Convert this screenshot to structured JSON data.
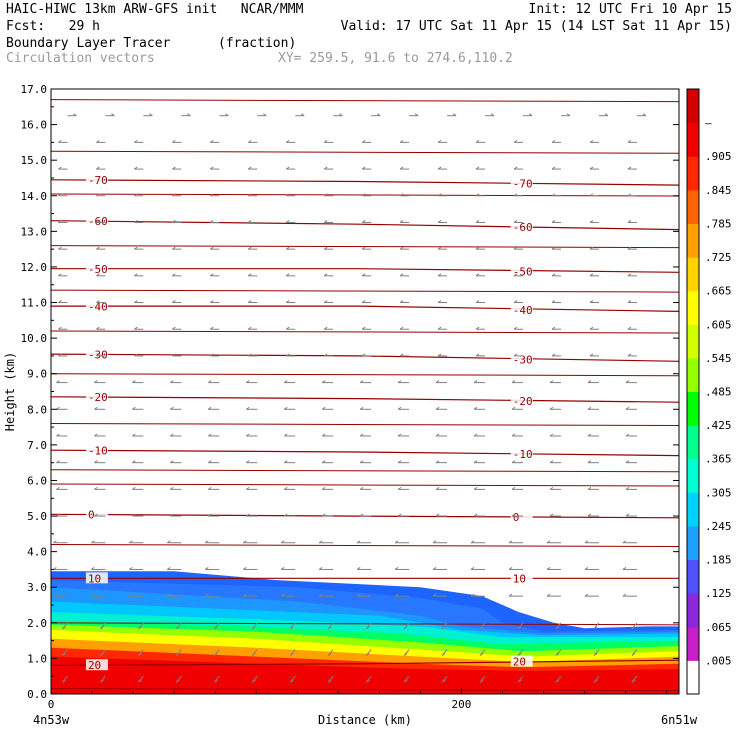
{
  "header": {
    "line1_left": "HAIC-HIWC 13km ARW-GFS init   NCAR/MMM",
    "line1_right": "Init: 12 UTC Fri 10 Apr 15",
    "line2_left": "Fcst:   29 h",
    "line2_right": "Valid: 17 UTC Sat 11 Apr 15 (14 LST Sat 11 Apr 15)",
    "line3_left": "Boundary Layer Tracer",
    "line3_units": "(fraction)",
    "line4_left": "Circulation vectors",
    "line4_xy": "XY= 259.5, 91.6 to 274.6,110.2"
  },
  "chart_data": {
    "type": "heatmap",
    "title": "Boundary Layer Tracer",
    "units": "(fraction)",
    "xlabel": "Distance (km)",
    "ylabel": "Height (km)",
    "xlim": [
      0,
      306
    ],
    "ylim": [
      0,
      17
    ],
    "x_ticks": [
      0,
      200
    ],
    "x_end_labels": [
      "4n53w",
      "6n51w"
    ],
    "y_ticks": [
      "0.0",
      "1.0",
      "2.0",
      "3.0",
      "4.0",
      "5.0",
      "6.0",
      "7.0",
      "8.0",
      "9.0",
      "10.0",
      "11.0",
      "12.0",
      "13.0",
      "14.0",
      "15.0",
      "16.0",
      "17.0"
    ],
    "colorbar": {
      "labels": [
        ".005",
        ".065",
        ".125",
        ".185",
        ".245",
        ".305",
        ".365",
        ".425",
        ".485",
        ".545",
        ".605",
        ".665",
        ".725",
        ".785",
        ".845",
        ".905",
        "–"
      ],
      "colors": [
        "#ffffff",
        "#c81ec8",
        "#8c28dc",
        "#5050ff",
        "#1ea0ff",
        "#00d2ff",
        "#00ffd2",
        "#00ff8c",
        "#00ff00",
        "#96ff00",
        "#d2ff00",
        "#ffff00",
        "#ffd200",
        "#ffa000",
        "#ff6400",
        "#ff2800",
        "#f00000",
        "#d20000"
      ]
    },
    "tracer_layers": [
      {
        "level": 0.005,
        "color": "#1e64ff",
        "top": [
          [
            0,
            3.45
          ],
          [
            60,
            3.45
          ],
          [
            110,
            3.2
          ],
          [
            180,
            3.0
          ],
          [
            210,
            2.75
          ],
          [
            228,
            2.3
          ],
          [
            245,
            2.0
          ],
          [
            260,
            1.85
          ],
          [
            290,
            1.9
          ],
          [
            306,
            1.9
          ]
        ]
      },
      {
        "level": 0.065,
        "color": "#2878ff",
        "top": [
          [
            0,
            3.2
          ],
          [
            60,
            3.1
          ],
          [
            120,
            3.0
          ],
          [
            180,
            2.7
          ],
          [
            210,
            2.4
          ],
          [
            220,
            2.0
          ],
          [
            240,
            1.75
          ],
          [
            306,
            1.8
          ]
        ]
      },
      {
        "level": 0.125,
        "color": "#1e96ff",
        "top": [
          [
            0,
            3.0
          ],
          [
            60,
            2.8
          ],
          [
            120,
            2.6
          ],
          [
            180,
            2.2
          ],
          [
            200,
            1.9
          ],
          [
            240,
            1.7
          ],
          [
            306,
            1.75
          ]
        ]
      },
      {
        "level": 0.185,
        "color": "#00c8ff",
        "top": [
          [
            0,
            2.6
          ],
          [
            80,
            2.4
          ],
          [
            160,
            2.2
          ],
          [
            200,
            1.8
          ],
          [
            240,
            1.65
          ],
          [
            306,
            1.7
          ]
        ]
      },
      {
        "level": 0.305,
        "color": "#00f0d2",
        "top": [
          [
            0,
            2.3
          ],
          [
            100,
            2.1
          ],
          [
            180,
            1.9
          ],
          [
            220,
            1.6
          ],
          [
            306,
            1.6
          ]
        ]
      },
      {
        "level": 0.425,
        "color": "#00ff64",
        "top": [
          [
            0,
            2.05
          ],
          [
            100,
            1.9
          ],
          [
            170,
            1.7
          ],
          [
            220,
            1.4
          ],
          [
            306,
            1.5
          ]
        ]
      },
      {
        "level": 0.545,
        "color": "#96ff00",
        "top": [
          [
            0,
            1.95
          ],
          [
            100,
            1.75
          ],
          [
            180,
            1.45
          ],
          [
            230,
            1.2
          ],
          [
            306,
            1.35
          ]
        ]
      },
      {
        "level": 0.665,
        "color": "#ffff00",
        "top": [
          [
            0,
            1.8
          ],
          [
            100,
            1.55
          ],
          [
            180,
            1.25
          ],
          [
            230,
            1.05
          ],
          [
            306,
            1.2
          ]
        ]
      },
      {
        "level": 0.785,
        "color": "#ffa000",
        "top": [
          [
            0,
            1.55
          ],
          [
            100,
            1.3
          ],
          [
            180,
            1.05
          ],
          [
            230,
            0.9
          ],
          [
            306,
            1.05
          ]
        ]
      },
      {
        "level": 0.905,
        "color": "#ff2800",
        "top": [
          [
            0,
            1.3
          ],
          [
            100,
            1.05
          ],
          [
            180,
            0.85
          ],
          [
            230,
            0.75
          ],
          [
            306,
            0.85
          ]
        ]
      },
      {
        "level": 1.0,
        "color": "#f00000",
        "top": [
          [
            0,
            1.05
          ],
          [
            100,
            0.85
          ],
          [
            180,
            0.7
          ],
          [
            230,
            0.65
          ],
          [
            306,
            0.7
          ]
        ]
      }
    ],
    "temperature_contours": [
      {
        "label": "-70",
        "pts": [
          [
            0,
            14.45
          ],
          [
            150,
            14.4
          ],
          [
            306,
            14.3
          ]
        ]
      },
      {
        "label": "-60",
        "pts": [
          [
            0,
            13.3
          ],
          [
            150,
            13.2
          ],
          [
            306,
            13.05
          ]
        ]
      },
      {
        "label": "-50",
        "pts": [
          [
            0,
            11.95
          ],
          [
            150,
            11.95
          ],
          [
            306,
            11.85
          ]
        ]
      },
      {
        "label": "-40",
        "pts": [
          [
            0,
            10.9
          ],
          [
            150,
            10.9
          ],
          [
            306,
            10.75
          ]
        ]
      },
      {
        "label": "-30",
        "pts": [
          [
            0,
            9.55
          ],
          [
            150,
            9.5
          ],
          [
            306,
            9.35
          ]
        ]
      },
      {
        "label": "-20",
        "pts": [
          [
            0,
            8.35
          ],
          [
            150,
            8.3
          ],
          [
            306,
            8.2
          ]
        ]
      },
      {
        "label": "-10",
        "pts": [
          [
            0,
            6.85
          ],
          [
            150,
            6.8
          ],
          [
            306,
            6.7
          ]
        ]
      },
      {
        "label": "0",
        "pts": [
          [
            0,
            5.05
          ],
          [
            150,
            5.0
          ],
          [
            306,
            4.95
          ]
        ]
      },
      {
        "label": "10",
        "pts": [
          [
            0,
            3.25
          ],
          [
            150,
            3.25
          ],
          [
            306,
            3.25
          ]
        ]
      },
      {
        "label": "20",
        "pts": [
          [
            0,
            0.8
          ],
          [
            150,
            0.85
          ],
          [
            306,
            0.95
          ]
        ]
      }
    ],
    "unlabeled_contours": [
      16.7,
      15.25,
      14.05,
      12.6,
      11.35,
      10.2,
      9.0,
      7.6,
      6.3,
      5.9,
      4.2,
      2.0,
      0.15
    ],
    "contour_color": "#960000",
    "vector_color": "#808080"
  }
}
